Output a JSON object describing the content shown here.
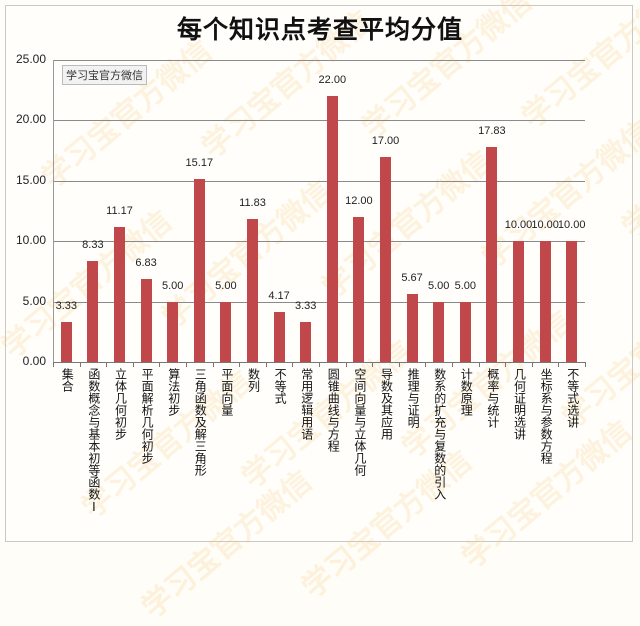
{
  "chart_data": {
    "type": "bar",
    "title": "每个知识点考查平均分值",
    "xlabel": "",
    "ylabel": "",
    "ylim": [
      0,
      25
    ],
    "yticks": [
      "0.00",
      "5.00",
      "10.00",
      "15.00",
      "20.00",
      "25.00"
    ],
    "grid": true,
    "legend": null,
    "bar_color": "#c0474a",
    "annotation": "学习宝官方微信",
    "categories": [
      "集合",
      "函数概念与基本初等函数I",
      "立体几何初步",
      "平面解析几何初步",
      "算法初步",
      "三角函数及解三角形",
      "平面向量",
      "数列",
      "不等式",
      "常用逻辑用语",
      "圆锥曲线与方程",
      "空间向量与立体几何",
      "导数及其应用",
      "推理与证明",
      "数系的扩充与复数的引入",
      "计数原理",
      "概率与统计",
      "几何证明选讲",
      "坐标系与参数方程",
      "不等式选讲"
    ],
    "values": [
      3.33,
      8.33,
      11.17,
      6.83,
      5.0,
      15.17,
      5.0,
      11.83,
      4.17,
      3.33,
      22.0,
      12.0,
      17.0,
      5.67,
      5.0,
      5.0,
      17.83,
      10.0,
      10.0,
      10.0
    ],
    "value_labels": [
      "3.33",
      "8.33",
      "11.17",
      "6.83",
      "5.00",
      "15.17",
      "5.00",
      "11.83",
      "4.17",
      "3.33",
      "22.00",
      "12.00",
      "17.00",
      "5.67",
      "5.00",
      "5.00",
      "17.83",
      "10.00",
      "10.00",
      "10.00"
    ]
  },
  "watermark": "学习宝官方微信"
}
